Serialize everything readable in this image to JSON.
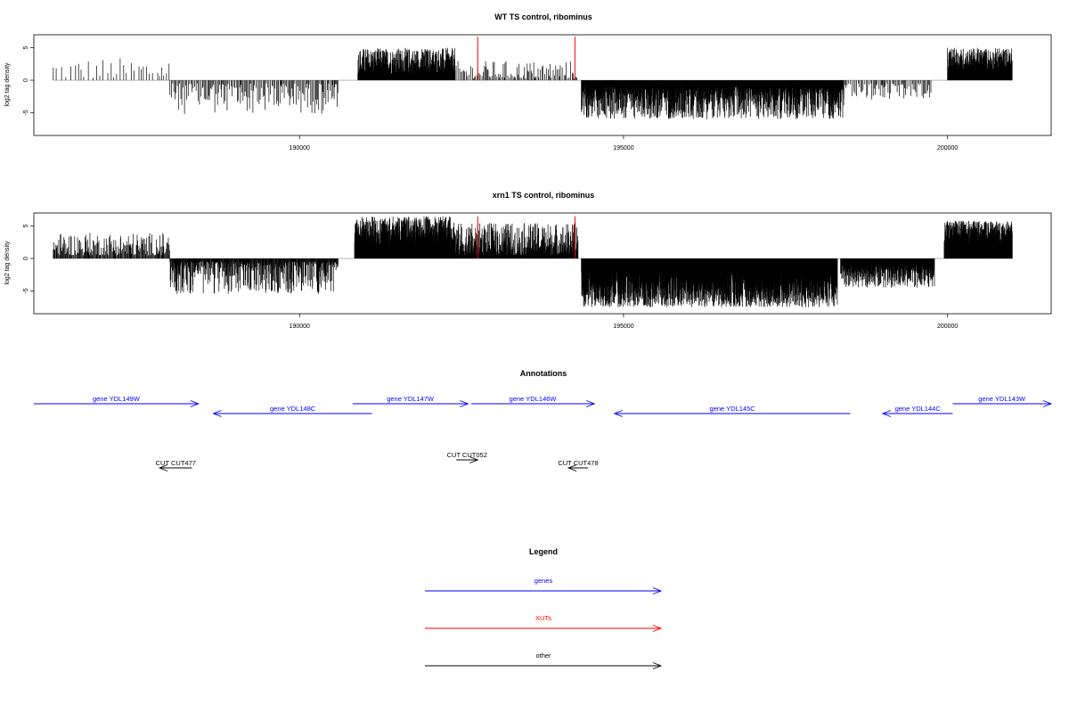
{
  "chart_data": [
    {
      "type": "bar",
      "title": "WT TS control, ribominus",
      "xlabel": "",
      "ylabel": "log2 tag density",
      "xlim": [
        185900,
        201600
      ],
      "ylim": [
        -8.5,
        7
      ],
      "yticks": [
        5,
        0,
        -5
      ],
      "xticks": [
        190000,
        195000,
        200000
      ],
      "segments": [
        {
          "x": [
            186200,
            188000
          ],
          "strand": "+",
          "min": 0.3,
          "max": 3.5,
          "density": 0.018
        },
        {
          "x": [
            188000,
            190600
          ],
          "strand": "-",
          "min": 0.5,
          "max": 5.2,
          "density": 0.06
        },
        {
          "x": [
            190900,
            192400
          ],
          "strand": "+",
          "min": 1.0,
          "max": 5.0,
          "density": 0.35
        },
        {
          "x": [
            192400,
            194300
          ],
          "strand": "+",
          "min": 0.3,
          "max": 3.0,
          "density": 0.05
        },
        {
          "x": [
            194350,
            198400
          ],
          "strand": "-",
          "min": 1.0,
          "max": 6.0,
          "density": 0.3
        },
        {
          "x": [
            198400,
            199750
          ],
          "strand": "-",
          "min": 0.5,
          "max": 3.0,
          "density": 0.05
        },
        {
          "x": [
            200000,
            201000
          ],
          "strand": "+",
          "min": 1.5,
          "max": 5.0,
          "density": 0.4
        }
      ],
      "highlights": [
        {
          "x": 192750,
          "y": 6.7,
          "color": "#ff0000"
        },
        {
          "x": 194250,
          "y": 6.7,
          "color": "#ff0000"
        }
      ]
    },
    {
      "type": "bar",
      "title": "xrn1 TS control, ribominus",
      "xlabel": "",
      "ylabel": "log2 tag density",
      "xlim": [
        185900,
        201600
      ],
      "ylim": [
        -8.5,
        7
      ],
      "yticks": [
        5,
        0,
        -5
      ],
      "xticks": [
        190000,
        195000,
        200000
      ],
      "segments": [
        {
          "x": [
            186200,
            188000
          ],
          "strand": "+",
          "min": 0.5,
          "max": 4.0,
          "density": 0.1
        },
        {
          "x": [
            188000,
            190600
          ],
          "strand": "-",
          "min": 0.5,
          "max": 5.5,
          "density": 0.15
        },
        {
          "x": [
            190850,
            192400
          ],
          "strand": "+",
          "min": 1.5,
          "max": 6.5,
          "density": 0.6
        },
        {
          "x": [
            192400,
            194300
          ],
          "strand": "+",
          "min": 0.5,
          "max": 5.5,
          "density": 0.25
        },
        {
          "x": [
            194350,
            198300
          ],
          "strand": "-",
          "min": 1.5,
          "max": 7.5,
          "density": 0.7
        },
        {
          "x": [
            198350,
            199800
          ],
          "strand": "-",
          "min": 1.0,
          "max": 4.5,
          "density": 0.3
        },
        {
          "x": [
            199950,
            201000
          ],
          "strand": "+",
          "min": 2.0,
          "max": 5.8,
          "density": 0.7
        }
      ],
      "highlights": [
        {
          "x": 192750,
          "y": 6.5,
          "color": "#ff0000"
        },
        {
          "x": 194250,
          "y": 6.5,
          "color": "#ff0000"
        }
      ]
    }
  ],
  "annotations": {
    "title": "Annotations",
    "items": [
      {
        "label": "gene YDL149W",
        "start": 185900,
        "end": 188440,
        "strand": "+",
        "row": 0,
        "kind": "gene"
      },
      {
        "label": "gene YDL148C",
        "start": 188670,
        "end": 191120,
        "strand": "-",
        "row": 1,
        "kind": "gene"
      },
      {
        "label": "gene YDL147W",
        "start": 190820,
        "end": 192600,
        "strand": "+",
        "row": 0,
        "kind": "gene"
      },
      {
        "label": "gene YDL146W",
        "start": 192650,
        "end": 194550,
        "strand": "+",
        "row": 0,
        "kind": "gene"
      },
      {
        "label": "gene YDL145C",
        "start": 194860,
        "end": 198500,
        "strand": "-",
        "row": 1,
        "kind": "gene"
      },
      {
        "label": "gene YDL144C",
        "start": 199000,
        "end": 200080,
        "strand": "-",
        "row": 1,
        "kind": "gene"
      },
      {
        "label": "gene YDL143W",
        "start": 200080,
        "end": 201700,
        "strand": "+",
        "row": 0,
        "kind": "gene"
      },
      {
        "label": "CUT CUT477",
        "start": 187840,
        "end": 188340,
        "strand": "-",
        "row": 3,
        "kind": "other"
      },
      {
        "label": "CUT CUT052",
        "start": 192420,
        "end": 192750,
        "strand": "+",
        "row": 2,
        "kind": "other"
      },
      {
        "label": "CUT CUT478",
        "start": 194150,
        "end": 194450,
        "strand": "-",
        "row": 3,
        "kind": "other"
      }
    ]
  },
  "legend": {
    "title": "Legend",
    "items": [
      {
        "label": "genes",
        "color": "#0000ff"
      },
      {
        "label": "XUTs",
        "color": "#ff0000"
      },
      {
        "label": "other",
        "color": "#000000"
      }
    ]
  }
}
